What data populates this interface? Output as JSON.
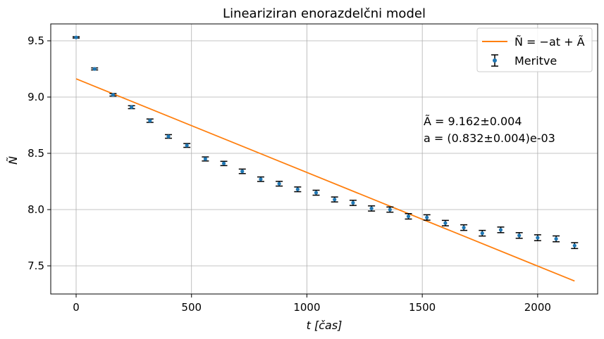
{
  "chart_data": {
    "type": "scatter",
    "title": "Lineariziran enorazdelčni model",
    "xlabel": "t [čas]",
    "ylabel": "Ñ",
    "xlim": [
      -110,
      2260
    ],
    "ylim": [
      7.25,
      9.65
    ],
    "xticks": [
      0,
      500,
      1000,
      1500,
      2000
    ],
    "yticks": [
      7.5,
      8.0,
      8.5,
      9.0,
      9.5
    ],
    "grid": true,
    "legend_position": "top-right",
    "series": [
      {
        "name": "Meritve",
        "kind": "errorbar",
        "color": "#1f77b4",
        "x": [
          0,
          80,
          160,
          240,
          320,
          400,
          480,
          560,
          640,
          720,
          800,
          880,
          960,
          1040,
          1120,
          1200,
          1280,
          1360,
          1440,
          1520,
          1600,
          1680,
          1760,
          1840,
          1920,
          2000,
          2080,
          2160
        ],
        "y": [
          9.53,
          9.25,
          9.02,
          8.91,
          8.79,
          8.65,
          8.57,
          8.45,
          8.41,
          8.34,
          8.27,
          8.23,
          8.18,
          8.15,
          8.09,
          8.06,
          8.01,
          8.0,
          7.94,
          7.93,
          7.88,
          7.84,
          7.79,
          7.82,
          7.77,
          7.75,
          7.74,
          7.68
        ],
        "yerr": [
          0.006,
          0.009,
          0.011,
          0.013,
          0.015,
          0.016,
          0.017,
          0.018,
          0.019,
          0.02,
          0.02,
          0.021,
          0.021,
          0.022,
          0.022,
          0.023,
          0.023,
          0.023,
          0.024,
          0.024,
          0.024,
          0.025,
          0.025,
          0.025,
          0.025,
          0.026,
          0.026,
          0.026
        ]
      },
      {
        "name": "Ñ = −at + Ã",
        "kind": "line",
        "color": "#ff7f0e",
        "x": [
          0,
          2160
        ],
        "y": [
          9.162,
          7.365
        ]
      }
    ],
    "annotation": {
      "line1": "Ã = 9.162±0.004",
      "line2": "a = (0.832±0.004)e-03"
    }
  }
}
